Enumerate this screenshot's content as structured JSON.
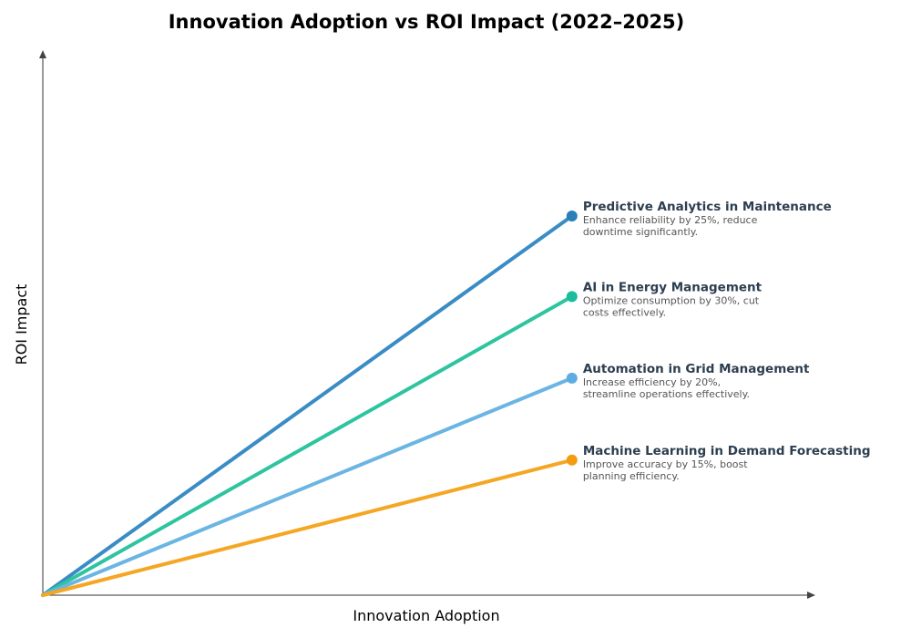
{
  "chart_data": {
    "type": "line",
    "title": "Innovation Adoption vs ROI Impact (2022–2025)",
    "xlabel": "Innovation Adoption",
    "ylabel": "ROI Impact",
    "xlim": [
      0,
      1.46
    ],
    "ylim": [
      0,
      1.15
    ],
    "grid": false,
    "series": [
      {
        "name": "Predictive Analytics in Maintenance",
        "description": [
          "Enhance reliability by 25%, reduce",
          "downtime significantly."
        ],
        "x": [
          0,
          1
        ],
        "y": [
          0,
          0.8
        ],
        "line_color": "#3a8cc4",
        "marker_color": "#2980b9"
      },
      {
        "name": "AI in Energy Management",
        "description": [
          "Optimize consumption by 30%, cut",
          "costs effectively."
        ],
        "x": [
          0,
          1
        ],
        "y": [
          0,
          0.63
        ],
        "line_color": "#2ec4a0",
        "marker_color": "#1abc9c"
      },
      {
        "name": "Automation in Grid Management",
        "description": [
          "Increase efficiency by 20%,",
          "streamline operations effectively."
        ],
        "x": [
          0,
          1
        ],
        "y": [
          0,
          0.458
        ],
        "line_color": "#6bb5e3",
        "marker_color": "#5dade2"
      },
      {
        "name": "Machine Learning in Demand Forecasting",
        "description": [
          "Improve accuracy by 15%, boost",
          "planning efficiency."
        ],
        "x": [
          0,
          1
        ],
        "y": [
          0,
          0.285
        ],
        "line_color": "#f5a623",
        "marker_color": "#f39c12"
      }
    ]
  }
}
